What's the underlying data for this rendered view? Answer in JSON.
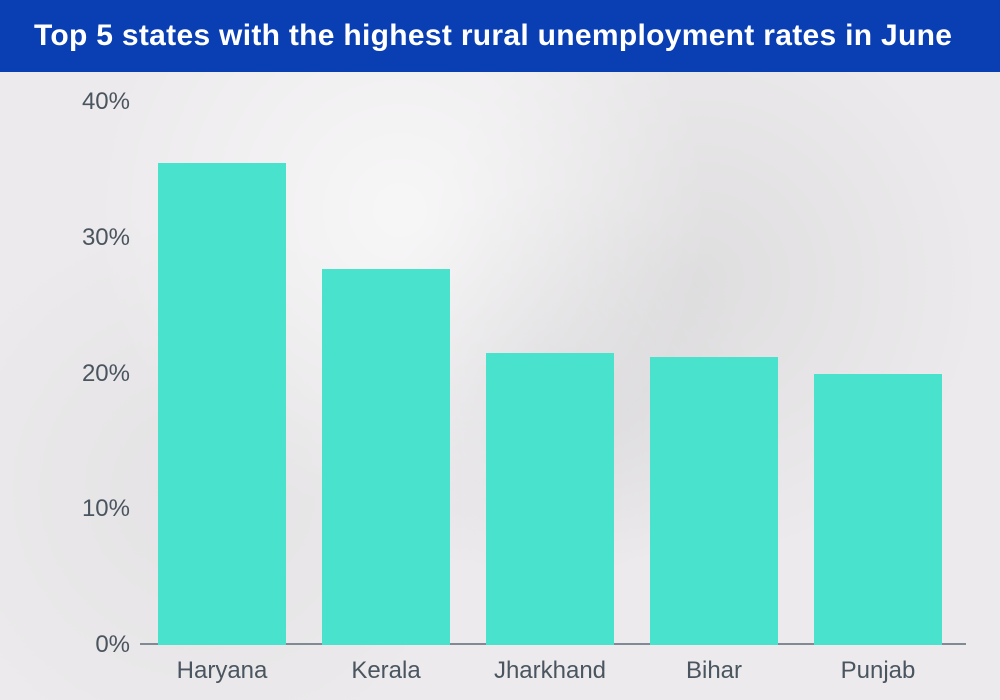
{
  "header": {
    "title": "Top 5 states with the highest rural unemployment rates in June",
    "background_color": "#0a3fb3",
    "title_color": "#ffffff",
    "title_fontsize": 30
  },
  "chart": {
    "type": "bar",
    "background_color": "#eceaec",
    "axis_label_color": "#4a5560",
    "axis_label_fontsize": 24,
    "baseline_color": "#808a94",
    "ylim": [
      0,
      40
    ],
    "ytick_step": 10,
    "ytick_suffix": "%",
    "bar_color": "#49e3cd",
    "bar_width_ratio": 0.78,
    "categories": [
      "Haryana",
      "Kerala",
      "Jharkhand",
      "Bihar",
      "Punjab"
    ],
    "values": [
      35.5,
      27.7,
      21.5,
      21.2,
      20.0
    ]
  }
}
